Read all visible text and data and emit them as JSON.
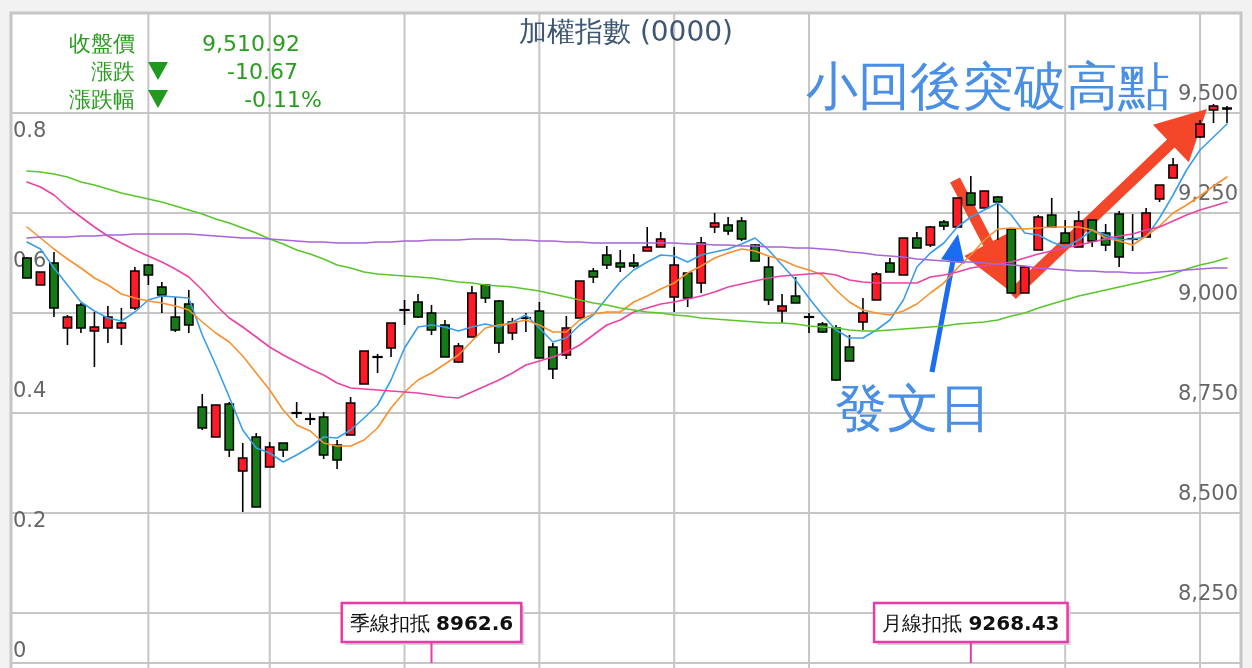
{
  "chart_data": {
    "type": "candlestick",
    "title": "加權指數 (0000)",
    "categories": [
      null,
      null,
      null,
      null,
      null,
      null,
      null,
      null,
      null,
      null,
      null,
      null,
      null,
      null,
      null,
      null,
      null,
      null,
      null,
      null,
      null,
      null,
      null,
      null,
      null,
      null,
      null,
      null,
      null,
      null,
      null,
      null,
      null,
      null,
      null,
      null,
      null,
      null,
      null,
      null,
      null,
      null,
      null,
      null,
      null,
      null,
      null,
      null,
      null,
      null,
      null,
      null,
      null,
      null,
      null,
      null,
      null,
      null,
      null,
      null,
      null,
      null,
      null,
      null,
      null,
      null,
      null,
      null,
      null,
      null,
      null,
      null,
      null,
      null,
      null,
      null,
      null,
      null,
      null,
      null,
      null,
      null,
      null,
      null,
      null,
      null,
      null,
      null,
      null,
      null
    ],
    "ohlc": [
      [
        9137.5,
        9140,
        9087.5,
        9087.5
      ],
      [
        9070,
        9102.5,
        9070,
        9102.5
      ],
      [
        9125,
        9152.5,
        8990,
        9012.5
      ],
      [
        8962.5,
        8995,
        8920,
        8990
      ],
      [
        9020,
        9025,
        8950,
        8962.5
      ],
      [
        8955,
        9002.5,
        8865,
        8965
      ],
      [
        8962.5,
        9017.5,
        8925,
        8990
      ],
      [
        8962.5,
        9012.5,
        8920,
        8975
      ],
      [
        9012.5,
        9115,
        9007.5,
        9105
      ],
      [
        9120,
        9122.5,
        9070,
        9095
      ],
      [
        9065,
        9077.5,
        9000,
        9045
      ],
      [
        8990,
        9040,
        8952.5,
        8957.5
      ],
      [
        9022.5,
        9057.5,
        8950,
        8970
      ],
      [
        8765,
        8797.5,
        8707.5,
        8712.5
      ],
      [
        8690,
        8770,
        8690,
        8770
      ],
      [
        8772.5,
        8777.5,
        8640,
        8657.5
      ],
      [
        8605,
        8675,
        8502.5,
        8637.5
      ],
      [
        8690,
        8700,
        8515,
        8515
      ],
      [
        8615,
        8677.5,
        8615,
        8665
      ],
      [
        8675,
        8675,
        8640,
        8657.5
      ],
      [
        8750,
        8777.5,
        8737.5,
        8750
      ],
      [
        8735,
        8750,
        8720,
        8735
      ],
      [
        8740,
        8752.5,
        8635,
        8645
      ],
      [
        8670,
        8682.5,
        8610,
        8632.5
      ],
      [
        8695,
        8790,
        8695,
        8775
      ],
      [
        8822.5,
        8905,
        8822.5,
        8905
      ],
      [
        8890,
        8897.5,
        8850,
        8890
      ],
      [
        8912.5,
        8975,
        8890,
        8975
      ],
      [
        9007.5,
        9032.5,
        8970,
        9007.5
      ],
      [
        9027.5,
        9047.5,
        8987.5,
        8990
      ],
      [
        9000,
        9020,
        8945,
        8957.5
      ],
      [
        8970,
        8982.5,
        8890,
        8890
      ],
      [
        8877.5,
        8925,
        8875,
        8917.5
      ],
      [
        8940,
        9067.5,
        8940,
        9050
      ],
      [
        9070,
        9072.5,
        9025,
        9037.5
      ],
      [
        9030,
        9032.5,
        8900,
        8925
      ],
      [
        8950,
        8987.5,
        8932.5,
        8977.5
      ],
      [
        8987.5,
        9000,
        8952.5,
        8987.5
      ],
      [
        9005,
        9027.5,
        8887.5,
        8887.5
      ],
      [
        8915,
        8925,
        8835,
        8860
      ],
      [
        8895,
        8992.5,
        8885,
        8962.5
      ],
      [
        8987.5,
        9080,
        8987.5,
        9080
      ],
      [
        9105,
        9112.5,
        9075,
        9090
      ],
      [
        9145,
        9167.5,
        9110,
        9120
      ],
      [
        9125,
        9157.5,
        9102.5,
        9115
      ],
      [
        9125,
        9147.5,
        9112.5,
        9117.5
      ],
      [
        9155,
        9215,
        9155,
        9165
      ],
      [
        9165,
        9202.5,
        9165,
        9185
      ],
      [
        9040,
        9165,
        9002.5,
        9120
      ],
      [
        9100,
        9100,
        9015,
        9037.5
      ],
      [
        9075,
        9190,
        9050,
        9175
      ],
      [
        9215,
        9250,
        9200,
        9225
      ],
      [
        9220,
        9240,
        9195,
        9205
      ],
      [
        9230,
        9240,
        9180,
        9185
      ],
      [
        9170,
        9172.5,
        9130,
        9130
      ],
      [
        9115,
        9140,
        9020,
        9032.5
      ],
      [
        9005,
        9047.5,
        8975,
        9017.5
      ],
      [
        9042.5,
        9090,
        9025,
        9025
      ],
      [
        8990,
        9000,
        8950,
        8990
      ],
      [
        8972.5,
        8977.5,
        8950,
        8952.5
      ],
      [
        8962.5,
        8970,
        8830,
        8832.5
      ],
      [
        8915,
        8945,
        8880,
        8880
      ],
      [
        8977.5,
        9037.5,
        8957.5,
        9000
      ],
      [
        9032.5,
        9102.5,
        9032.5,
        9097.5
      ],
      [
        9125,
        9137.5,
        9102.5,
        9102.5
      ],
      [
        9095,
        9187.5,
        9095,
        9187.5
      ],
      [
        9187.5,
        9202.5,
        9162.5,
        9162.5
      ],
      [
        9170,
        9217.5,
        9165,
        9215
      ],
      [
        9227.5,
        9232.5,
        9207.5,
        9217.5
      ],
      [
        9215,
        9287.5,
        9215,
        9287.5
      ],
      [
        9300,
        9342.5,
        9270,
        9270
      ],
      [
        9262.5,
        9305,
        9262.5,
        9305
      ],
      [
        9290,
        9292.5,
        9182.5,
        9277.5
      ],
      [
        9210,
        9210,
        9050,
        9050
      ],
      [
        9050,
        9115,
        9050,
        9115
      ],
      [
        9157.5,
        9245,
        9157.5,
        9240
      ],
      [
        9245,
        9287.5,
        9215,
        9215
      ],
      [
        9200,
        9232.5,
        9175,
        9175
      ],
      [
        9165,
        9255,
        9165,
        9230
      ],
      [
        9232.5,
        9232.5,
        9165,
        9180
      ],
      [
        9200,
        9222.5,
        9155,
        9170
      ],
      [
        9247.5,
        9255,
        9115,
        9140
      ],
      [
        9185,
        9247.5,
        9155,
        9185
      ],
      [
        9190,
        9262.5,
        9190,
        9250
      ],
      [
        9285,
        9320,
        9277.5,
        9320
      ],
      [
        9337.5,
        9387.5,
        9337.5,
        9370
      ],
      null,
      [
        9440,
        9482.5,
        9437.5,
        9472.5
      ],
      [
        9507.5,
        9522.5,
        9475,
        9517.5
      ],
      [
        9512.5,
        9517.5,
        9475,
        9510
      ]
    ],
    "colors": [
      "#167a16",
      "#ff1a26",
      "#167a16",
      "#ff1a26",
      "#167a16",
      "#ff1a26",
      "#ff1a26",
      "#ff1a26",
      "#ff1a26",
      "#167a16",
      "#167a16",
      "#167a16",
      "#167a16",
      "#167a16",
      "#ff1a26",
      "#167a16",
      "#ff1a26",
      "#167a16",
      "#ff1a26",
      "#167a16",
      "#000000",
      "#000000",
      "#167a16",
      "#167a16",
      "#ff1a26",
      "#ff1a26",
      "#000000",
      "#ff1a26",
      "#000000",
      "#167a16",
      "#167a16",
      "#167a16",
      "#ff1a26",
      "#ff1a26",
      "#167a16",
      "#167a16",
      "#ff1a26",
      "#000000",
      "#167a16",
      "#167a16",
      "#ff1a26",
      "#ff1a26",
      "#167a16",
      "#167a16",
      "#167a16",
      "#167a16",
      "#ff1a26",
      "#ff1a26",
      "#ff1a26",
      "#167a16",
      "#ff1a26",
      "#ff1a26",
      "#167a16",
      "#167a16",
      "#167a16",
      "#167a16",
      "#ff1a26",
      "#167a16",
      "#000000",
      "#167a16",
      "#167a16",
      "#167a16",
      "#ff1a26",
      "#ff1a26",
      "#167a16",
      "#ff1a26",
      "#167a16",
      "#ff1a26",
      "#167a16",
      "#ff1a26",
      "#167a16",
      "#ff1a26",
      "#167a16",
      "#167a16",
      "#ff1a26",
      "#ff1a26",
      "#167a16",
      "#167a16",
      "#ff1a26",
      "#167a16",
      "#167a16",
      "#167a16",
      "#000000",
      "#ff1a26",
      "#ff1a26",
      "#ff1a26",
      null,
      "#ff1a26",
      "#ff1a26",
      "#167a16"
    ],
    "series": [
      {
        "type": "line",
        "color": "#3a9ee8",
        "values": [
          9177.5,
          9160,
          9112.5,
          9070,
          9027.5,
          9005,
          8987.5,
          8980,
          9002.5,
          9032.5,
          9042.5,
          9040,
          9037.5,
          8945,
          8870,
          8790,
          8707.5,
          8662.5,
          8650,
          8627.5,
          8645,
          8665,
          8690,
          8687.5,
          8707.5,
          8737.5,
          8770,
          8832.5,
          8912.5,
          8965,
          8970,
          8965,
          8955,
          8965,
          8972.5,
          8965,
          8977.5,
          8995,
          8962.5,
          8927.5,
          8937.5,
          8970,
          8995,
          9037.5,
          9077.5,
          9107.5,
          9127.5,
          9145,
          9142.5,
          9127.5,
          9145,
          9152.5,
          9160,
          9172.5,
          9187.5,
          9157.5,
          9120,
          9082.5,
          9037.5,
          8995,
          8957.5,
          8937.5,
          8937.5,
          8957.5,
          8982.5,
          9032.5,
          9115,
          9150,
          9175,
          9215,
          9240,
          9257.5,
          9275,
          9245,
          9200,
          9195,
          9177.5,
          9165,
          9182.5,
          9207.5,
          9195,
          9182.5,
          9185,
          9190,
          9237.5,
          9295,
          9357.5,
          9407.5,
          9440,
          9472.5
        ]
      },
      {
        "type": "line",
        "color": "#f7902f",
        "values": [
          9215,
          9187.5,
          9160,
          9135,
          9112.5,
          9087.5,
          9070,
          9047.5,
          9037.5,
          9030,
          9025,
          9017.5,
          9007.5,
          8977.5,
          8950,
          8927.5,
          8892.5,
          8850,
          8807.5,
          8757.5,
          8720,
          8705,
          8675,
          8667.5,
          8667.5,
          8682.5,
          8712.5,
          8762.5,
          8802.5,
          8832.5,
          8850,
          8872.5,
          8895,
          8930,
          8962.5,
          8970,
          8975,
          8982.5,
          8970,
          8952.5,
          8952.5,
          8982.5,
          8997.5,
          9002.5,
          9002.5,
          9027.5,
          9042.5,
          9060,
          9075,
          9100,
          9117.5,
          9137.5,
          9150,
          9160,
          9155,
          9142.5,
          9132.5,
          9117.5,
          9107.5,
          9095,
          9057.5,
          9027.5,
          9007.5,
          9000,
          8995,
          9005,
          9022.5,
          9050,
          9075,
          9112.5,
          9145,
          9182.5,
          9210,
          9212.5,
          9210,
          9212.5,
          9215,
          9215,
          9215,
          9207.5,
          9187.5,
          9180,
          9170,
          9192.5,
          9217.5,
          9250,
          9270,
          9292.5,
          9317.5,
          9340
        ]
      },
      {
        "type": "line",
        "color": "#ea43a6",
        "values": [
          9327.5,
          9315,
          9295,
          9265,
          9240,
          9215,
          9192.5,
          9175,
          9157.5,
          9142.5,
          9127.5,
          9110,
          9090,
          9057.5,
          9020,
          8987.5,
          8965,
          8940,
          8915,
          8895,
          8877.5,
          8860,
          8845,
          8825,
          8812.5,
          8810,
          8807.5,
          8805,
          8802.5,
          8800,
          8795,
          8790,
          8787.5,
          8802.5,
          8817.5,
          8832.5,
          8850,
          8870,
          8880,
          8890,
          8902.5,
          8920,
          8945,
          8970,
          8982.5,
          9002.5,
          9012.5,
          9022.5,
          9027.5,
          9035,
          9042.5,
          9052.5,
          9065,
          9072.5,
          9080,
          9087.5,
          9092.5,
          9095,
          9097.5,
          9100,
          9095,
          9082.5,
          9077.5,
          9075,
          9075,
          9075,
          9075,
          9090,
          9095,
          9102.5,
          9112.5,
          9117.5,
          9122.5,
          9127.5,
          9137.5,
          9147.5,
          9155,
          9162.5,
          9170,
          9177.5,
          9185,
          9192.5,
          9197.5,
          9207.5,
          9215,
          9230,
          9245,
          9257.5,
          9267.5,
          9277.5
        ]
      },
      {
        "type": "line",
        "color": "#5ac62c",
        "values": [
          9355,
          9352.5,
          9347.5,
          9340,
          9327.5,
          9320,
          9310,
          9300,
          9292.5,
          9285,
          9277.5,
          9267.5,
          9257.5,
          9247.5,
          9235,
          9225,
          9212.5,
          9200,
          9185,
          9172.5,
          9157.5,
          9147.5,
          9135,
          9120,
          9112.5,
          9102.5,
          9097.5,
          9095,
          9092.5,
          9090,
          9087.5,
          9082.5,
          9077.5,
          9075,
          9070,
          9067.5,
          9065,
          9060,
          9055,
          9047.5,
          9040,
          9032.5,
          9025,
          9020,
          9012.5,
          9007.5,
          9002.5,
          9000,
          8995,
          8992.5,
          8987.5,
          8985,
          8982.5,
          8980,
          8977.5,
          8975,
          8975,
          8972.5,
          8967.5,
          8965,
          8962.5,
          8957.5,
          8955,
          8955,
          8957.5,
          8960,
          8962.5,
          8965,
          8967.5,
          8972.5,
          8975,
          8977.5,
          8982.5,
          8992.5,
          9000,
          9012.5,
          9022.5,
          9032.5,
          9042.5,
          9050,
          9057.5,
          9065,
          9072.5,
          9080,
          9087.5,
          9097.5,
          9110,
          9120,
          9127.5,
          9137.5
        ]
      },
      {
        "type": "line",
        "color": "#a864d8",
        "values": [
          9187.5,
          9190,
          9190,
          9190,
          9192.5,
          9192.5,
          9195,
          9195,
          9197.5,
          9197.5,
          9197.5,
          9197.5,
          9197.5,
          9195,
          9192.5,
          9190,
          9187.5,
          9187.5,
          9185,
          9182.5,
          9180,
          9177.5,
          9177.5,
          9175,
          9175,
          9175,
          9177.5,
          9177.5,
          9180,
          9180,
          9182.5,
          9182.5,
          9182.5,
          9185,
          9185,
          9185,
          9182.5,
          9182.5,
          9180,
          9180,
          9177.5,
          9177.5,
          9175,
          9175,
          9175,
          9175,
          9175,
          9175,
          9175,
          9172.5,
          9172.5,
          9170,
          9170,
          9167.5,
          9167.5,
          9165,
          9165,
          9162.5,
          9162.5,
          9160,
          9157.5,
          9152.5,
          9150,
          9145,
          9142.5,
          9140,
          9135,
          9132.5,
          9130,
          9127.5,
          9127.5,
          9125,
          9122.5,
          9120,
          9117.5,
          9112.5,
          9110,
          9107.5,
          9105,
          9105,
          9102.5,
          9102.5,
          9100,
          9100,
          9102.5,
          9105,
          9107.5,
          9110,
          9112.5,
          9112.5
        ]
      }
    ],
    "ylim": [
      8125,
      9750
    ],
    "yticks": [
      {
        "value": 8250,
        "label": "8,250"
      },
      {
        "value": 8500,
        "label": "8,500"
      },
      {
        "value": 8750,
        "label": "8,750"
      },
      {
        "value": 9000,
        "label": "9,000"
      },
      {
        "value": 9250,
        "label": "9,250"
      },
      {
        "value": 9500,
        "label": "9,500"
      }
    ],
    "y2lim": [
      -0.02,
      0.98
    ],
    "y2ticks": [
      0,
      0.2,
      0.4,
      0.6,
      0.8
    ],
    "grid": true,
    "annotations": [
      "收盤價",
      "9,510.92",
      "漲跌",
      "-10.67",
      "漲跌幅",
      "-0.11%",
      "小回後突破高點",
      "發文日",
      "季線扣抵 **8962.6**",
      "月線扣抵 **9268.43**"
    ]
  }
}
